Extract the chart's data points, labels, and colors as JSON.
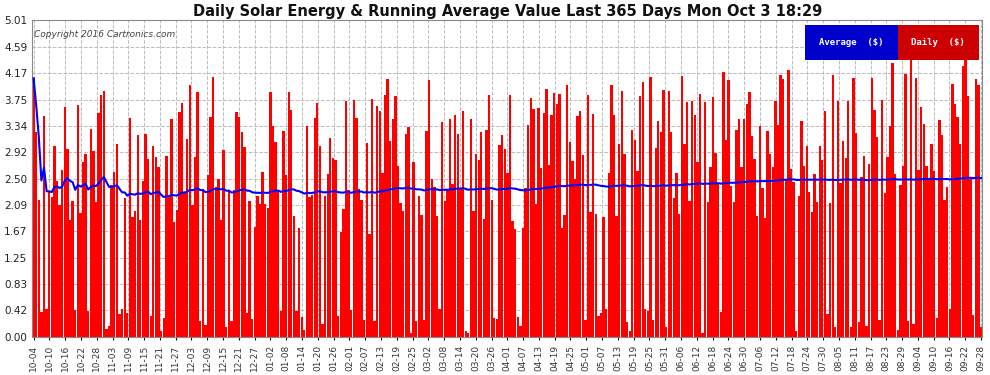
{
  "title": "Daily Solar Energy & Running Average Value Last 365 Days Mon Oct 3 18:29",
  "copyright": "Copyright 2016 Cartronics.com",
  "background_color": "#ffffff",
  "plot_bg_color": "#ffffff",
  "bar_color": "#ff0000",
  "avg_line_color": "#0000ff",
  "y_ticks": [
    0.0,
    0.42,
    0.83,
    1.25,
    1.67,
    2.09,
    2.5,
    2.92,
    3.34,
    3.75,
    4.17,
    4.59,
    5.01
  ],
  "x_labels": [
    "10-04",
    "10-10",
    "10-16",
    "10-22",
    "10-28",
    "11-03",
    "11-09",
    "11-15",
    "11-21",
    "11-27",
    "12-03",
    "12-09",
    "12-15",
    "12-21",
    "12-27",
    "01-02",
    "01-08",
    "01-14",
    "01-20",
    "01-26",
    "02-01",
    "02-07",
    "02-13",
    "02-19",
    "02-25",
    "03-02",
    "03-08",
    "03-14",
    "03-20",
    "03-26",
    "04-01",
    "04-07",
    "04-13",
    "04-19",
    "04-25",
    "05-01",
    "05-07",
    "05-13",
    "05-19",
    "05-25",
    "05-31",
    "06-06",
    "06-12",
    "06-18",
    "06-24",
    "06-30",
    "07-06",
    "07-12",
    "07-18",
    "07-24",
    "07-30",
    "08-05",
    "08-11",
    "08-17",
    "08-23",
    "08-29",
    "09-04",
    "09-10",
    "09-16",
    "09-22",
    "09-28"
  ],
  "legend_avg_color": "#0000cc",
  "legend_daily_color": "#cc0000",
  "legend_avg_text": "Average  ($)",
  "legend_daily_text": "Daily  ($)"
}
